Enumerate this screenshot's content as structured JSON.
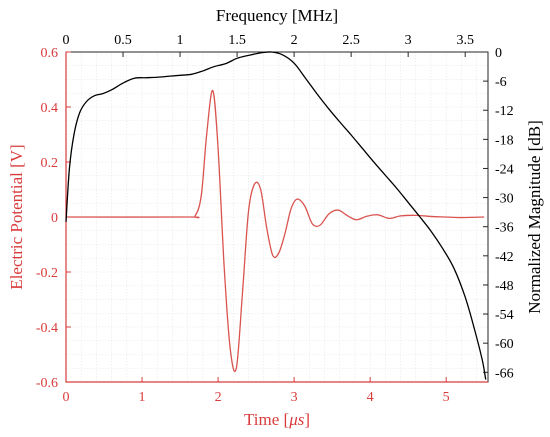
{
  "chart_data": {
    "type": "line",
    "title": "",
    "grid": true,
    "colors": {
      "time_series": "#d9534f",
      "frequency_series": "#000000",
      "left_axis": "#d93b3b",
      "right_axis": "#000000",
      "grid": "#e6e6e6"
    },
    "x_bottom": {
      "label_prefix": "Time [",
      "label_unit": "μs",
      "label_suffix": "]",
      "lim": [
        0,
        5.55
      ],
      "ticks": [
        "0",
        "1",
        "2",
        "3",
        "4",
        "5"
      ]
    },
    "x_top": {
      "label": "Frequency [MHz]",
      "lim": [
        0,
        3.7
      ],
      "ticks": [
        "0",
        "0.5",
        "1",
        "1.5",
        "2",
        "2.5",
        "3",
        "3.5"
      ]
    },
    "y_left": {
      "label": "Electric Potential [V]",
      "lim": [
        -0.6,
        0.6
      ],
      "ticks": [
        "-0.6",
        "-0.4",
        "-0.2",
        "0",
        "0.2",
        "0.4",
        "0.6"
      ]
    },
    "y_right": {
      "label": "Normalized Magnitude [dB]",
      "lim": [
        -68,
        0
      ],
      "ticks": [
        "0",
        "-6",
        "-12",
        "-18",
        "-24",
        "-30",
        "-36",
        "-42",
        "-48",
        "-54",
        "-60",
        "-66"
      ]
    },
    "series": [
      {
        "axis": "bottom-left",
        "x": [
          0,
          1.6,
          1.7,
          1.78,
          1.85,
          1.93,
          2.0,
          2.08,
          2.16,
          2.24,
          2.32,
          2.4,
          2.48,
          2.56,
          2.64,
          2.72,
          2.8,
          2.88,
          2.96,
          3.04,
          3.14,
          3.24,
          3.34,
          3.46,
          3.58,
          3.7,
          3.82,
          3.96,
          4.1,
          4.25,
          4.4,
          4.6,
          4.8,
          5.0,
          5.2,
          5.5
        ],
        "y": [
          0,
          0,
          0.005,
          0.08,
          0.3,
          0.46,
          0.25,
          -0.18,
          -0.48,
          -0.55,
          -0.28,
          0.02,
          0.12,
          0.1,
          -0.04,
          -0.14,
          -0.13,
          -0.06,
          0.03,
          0.065,
          0.04,
          -0.025,
          -0.03,
          0.012,
          0.025,
          0.005,
          -0.01,
          0.003,
          0.008,
          -0.005,
          0.004,
          0.006,
          0.002,
          0.0,
          -0.002,
          0.0
        ]
      },
      {
        "axis": "top-right",
        "x": [
          0,
          0.03,
          0.07,
          0.12,
          0.18,
          0.25,
          0.32,
          0.4,
          0.5,
          0.6,
          0.7,
          0.8,
          0.9,
          1.0,
          1.1,
          1.2,
          1.3,
          1.4,
          1.5,
          1.6,
          1.7,
          1.8,
          1.9,
          2.0,
          2.1,
          2.2,
          2.3,
          2.4,
          2.5,
          2.6,
          2.7,
          2.8,
          2.9,
          3.0,
          3.1,
          3.2,
          3.3,
          3.4,
          3.5,
          3.58,
          3.65,
          3.68
        ],
        "y": [
          -35,
          -24,
          -17,
          -12.5,
          -10.2,
          -9.0,
          -8.6,
          -7.8,
          -6.4,
          -5.4,
          -5.3,
          -5.2,
          -5.0,
          -4.8,
          -4.6,
          -3.9,
          -3.0,
          -2.4,
          -1.3,
          -0.7,
          -0.2,
          0,
          -0.6,
          -2.3,
          -5.4,
          -8.6,
          -11.6,
          -14.4,
          -17.1,
          -19.9,
          -22.7,
          -25.4,
          -28.1,
          -31.0,
          -33.9,
          -36.9,
          -40.4,
          -44.5,
          -50.5,
          -57.0,
          -63.5,
          -67.5
        ]
      }
    ]
  }
}
